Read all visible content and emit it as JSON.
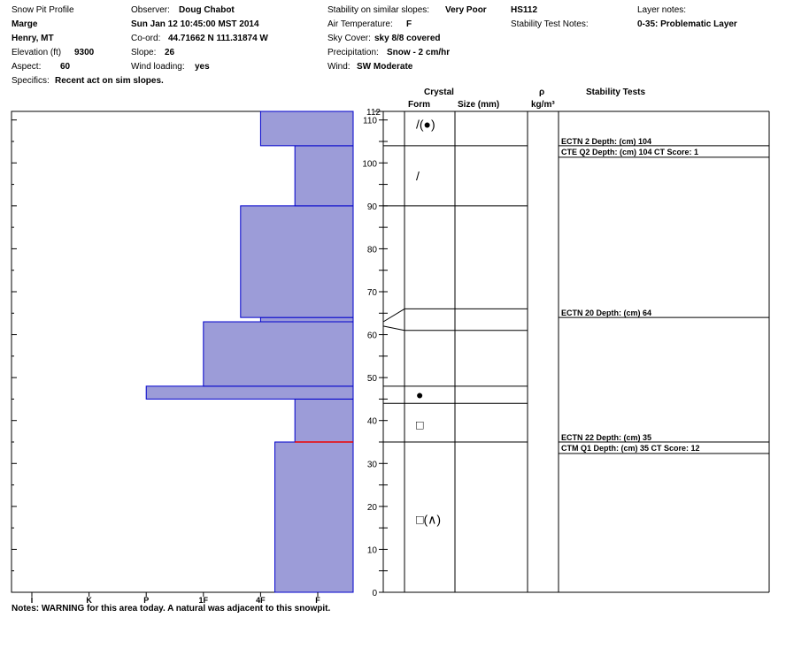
{
  "header": {
    "title": "Snow Pit Profile",
    "observer_label": "Observer:",
    "observer": "Doug Chabot",
    "name": "Marge",
    "datetime": "Sun Jan 12 10:45:00 MST 2014",
    "location": "Henry, MT",
    "coord_label": "Co-ord:",
    "coord": "44.71662 N 111.31874 W",
    "elevation_label": "Elevation (ft)",
    "elevation": "9300",
    "slope_label": "Slope:",
    "slope": "26",
    "aspect_label": "Aspect:",
    "aspect": "60",
    "wind_loading_label": "Wind loading:",
    "wind_loading": "yes",
    "specifics_label": "Specifics:",
    "specifics": "Recent act on sim slopes.",
    "stability_label": "Stability on similar slopes:",
    "stability": "Very Poor",
    "air_temp_label": "Air Temperature:",
    "air_temp": "F",
    "sky_label": "Sky Cover:",
    "sky": "sky 8/8 covered",
    "precip_label": "Precipitation:",
    "precip": "Snow - 2 cm/hr",
    "wind_label": "Wind:",
    "wind": "SW Moderate",
    "hs": "HS112",
    "stability_notes_label": "Stability Test Notes:",
    "layer_notes_label": "Layer notes:",
    "layer_notes": "0-35: Problematic Layer"
  },
  "columns": {
    "crystal": "Crystal",
    "form": "Form",
    "size": "Size (mm)",
    "rho": "ρ",
    "density_unit": "kg/m³",
    "stability_tests": "Stability Tests"
  },
  "notes": "Notes:  WARNING for this area today.  A natural was adjacent to this snowpit.",
  "chart_data": {
    "type": "bar",
    "orientation": "horizontal",
    "description_axis": "hardness vs depth",
    "hardness_labels": [
      "I",
      "K",
      "P",
      "1F",
      "4F",
      "F"
    ],
    "depth_ticks": [
      0,
      10,
      20,
      30,
      40,
      50,
      60,
      70,
      80,
      90,
      100,
      110
    ],
    "depth_max": 112,
    "hardness_profile": [
      {
        "bottom": 0,
        "top": 35,
        "hardness_level": 4.25
      },
      {
        "bottom": 35,
        "top": 45,
        "hardness_level": 4.6
      },
      {
        "bottom": 45,
        "top": 48,
        "hardness_level": 2.0
      },
      {
        "bottom": 48,
        "top": 63,
        "hardness_level": 3.0
      },
      {
        "bottom": 63,
        "top": 64,
        "hardness_level": 4.0
      },
      {
        "bottom": 64,
        "top": 90,
        "hardness_level": 3.65
      },
      {
        "bottom": 90,
        "top": 104,
        "hardness_level": 4.6
      },
      {
        "bottom": 104,
        "top": 112,
        "hardness_level": 4.0
      }
    ],
    "layer_boundaries": [
      35,
      44,
      48,
      61,
      66,
      90,
      104
    ],
    "crystal_symbols": [
      {
        "depth": 109,
        "symbol": "/(●)"
      },
      {
        "depth": 97,
        "symbol": "/"
      },
      {
        "depth": 46,
        "symbol": "●"
      },
      {
        "depth": 39,
        "symbol": "□"
      },
      {
        "depth": 17,
        "symbol": "□(∧)"
      }
    ],
    "stability_tests": [
      {
        "depth": 104,
        "label": "ECTN 2  Depth: (cm) 104"
      },
      {
        "depth": 104,
        "label": "CTE Q2 Depth: (cm) 104 CT Score: 1"
      },
      {
        "depth": 64,
        "label": "ECTN 20  Depth: (cm) 64"
      },
      {
        "depth": 35,
        "label": "ECTN 22  Depth: (cm) 35"
      },
      {
        "depth": 35,
        "label": "CTM Q1 Depth: (cm) 35 CT Score: 12"
      }
    ],
    "colors": {
      "fill": "#9c9cd8",
      "edge": "#0000cc",
      "problem_line": "#ee0000"
    }
  }
}
